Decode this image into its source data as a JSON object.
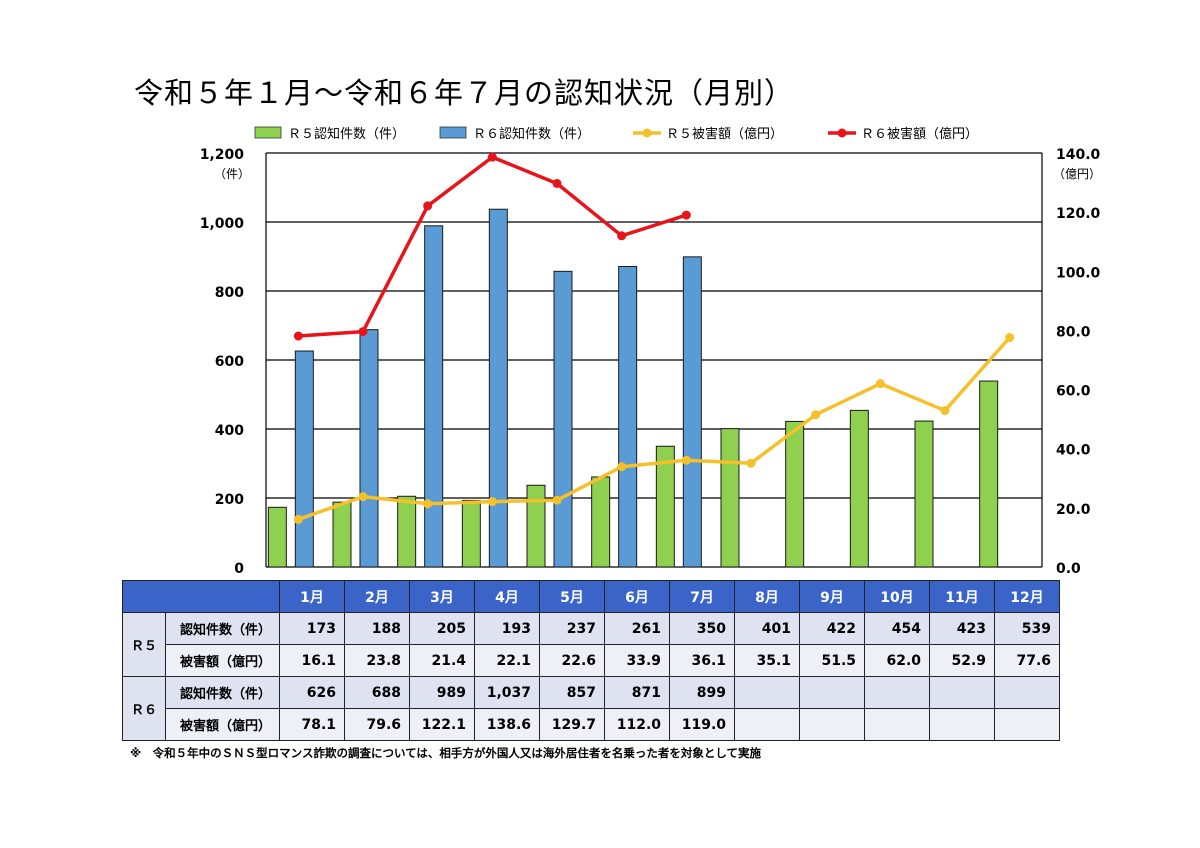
{
  "title": "令和５年１月～令和６年７月の認知状況（月別）",
  "chart_data": {
    "type": "bar",
    "categories": [
      "1月",
      "2月",
      "3月",
      "4月",
      "5月",
      "6月",
      "7月",
      "8月",
      "9月",
      "10月",
      "11月",
      "12月"
    ],
    "series": [
      {
        "name": "Ｒ５認知件数（件）",
        "kind": "bar",
        "axis": "left",
        "color": "#8fd14f",
        "values": [
          173,
          188,
          205,
          193,
          237,
          261,
          350,
          401,
          422,
          454,
          423,
          539
        ]
      },
      {
        "name": "Ｒ６認知件数（件）",
        "kind": "bar",
        "axis": "left",
        "color": "#5b9bd5",
        "values": [
          626,
          688,
          989,
          1037,
          857,
          871,
          899,
          null,
          null,
          null,
          null,
          null
        ]
      },
      {
        "name": "Ｒ５被害額（億円）",
        "kind": "line",
        "axis": "right",
        "color": "#f5c02a",
        "values": [
          16.1,
          23.8,
          21.4,
          22.1,
          22.6,
          33.9,
          36.1,
          35.1,
          51.5,
          62.0,
          52.9,
          77.6
        ]
      },
      {
        "name": "Ｒ６被害額（億円）",
        "kind": "line",
        "axis": "right",
        "color": "#e8141b",
        "values": [
          78.1,
          79.6,
          122.1,
          138.6,
          129.7,
          112.0,
          119.0,
          null,
          null,
          null,
          null,
          null
        ]
      }
    ],
    "y_left": {
      "range": [
        0,
        1200
      ],
      "ticks": [
        "0",
        "200",
        "400",
        "600",
        "800",
        "1,000",
        "1,200"
      ],
      "unit": "（件）"
    },
    "y_right": {
      "range": [
        0,
        140
      ],
      "ticks": [
        "0.0",
        "20.0",
        "40.0",
        "60.0",
        "80.0",
        "100.0",
        "120.0",
        "140.0"
      ],
      "unit": "（億円）"
    },
    "grid": true,
    "legend_position": "top"
  },
  "table": {
    "months": [
      "1月",
      "2月",
      "3月",
      "4月",
      "5月",
      "6月",
      "7月",
      "8月",
      "9月",
      "10月",
      "11月",
      "12月"
    ],
    "r5": {
      "group": "Ｒ５",
      "rows": [
        {
          "label": "認知件数（件）",
          "values": [
            "173",
            "188",
            "205",
            "193",
            "237",
            "261",
            "350",
            "401",
            "422",
            "454",
            "423",
            "539"
          ]
        },
        {
          "label": "被害額（億円）",
          "values": [
            "16.1",
            "23.8",
            "21.4",
            "22.1",
            "22.6",
            "33.9",
            "36.1",
            "35.1",
            "51.5",
            "62.0",
            "52.9",
            "77.6"
          ]
        }
      ]
    },
    "r6": {
      "group": "Ｒ６",
      "rows": [
        {
          "label": "認知件数（件）",
          "values": [
            "626",
            "688",
            "989",
            "1,037",
            "857",
            "871",
            "899",
            "",
            "",
            "",
            "",
            ""
          ]
        },
        {
          "label": "被害額（億円）",
          "values": [
            "78.1",
            "79.6",
            "122.1",
            "138.6",
            "129.7",
            "112.0",
            "119.0",
            "",
            "",
            "",
            "",
            ""
          ]
        }
      ]
    }
  },
  "note": "※　令和５年中のＳＮＳ型ロマンス詐欺の調査については、相手方が外国人又は海外居住者を名乗った者を対象として実施"
}
